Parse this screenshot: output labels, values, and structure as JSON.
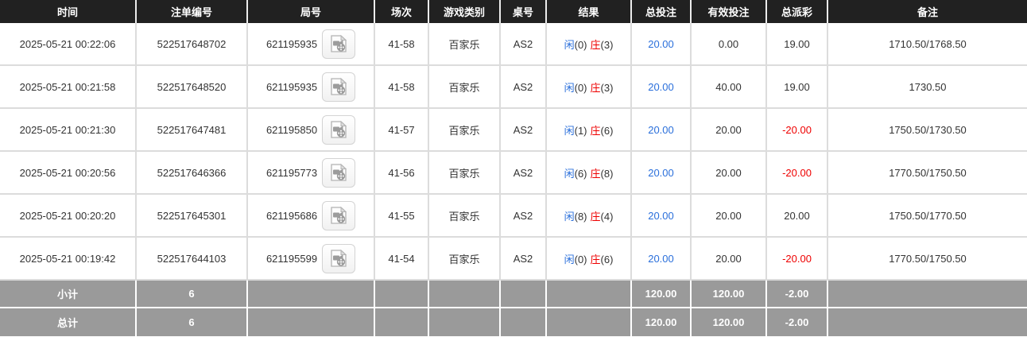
{
  "colors": {
    "header_bg": "#212121",
    "header_text": "#ffffff",
    "summary_bg": "#9a9a9a",
    "accent_blue": "#2a6fdb",
    "accent_red": "#ee0000",
    "row_border": "#dcdcdc"
  },
  "icons": {
    "round_action": "video-file-icon"
  },
  "table": {
    "columns": {
      "time": "时间",
      "bet_id": "注单编号",
      "round_id": "局号",
      "session": "场次",
      "game_type": "游戏类别",
      "table_no": "桌号",
      "result": "结果",
      "total_bet": "总投注",
      "valid_bet": "有效投注",
      "total_payout": "总派彩",
      "remark": "备注"
    },
    "rows": [
      {
        "time": "2025-05-21 00:22:06",
        "bet_id": "522517648702",
        "round_id": "621195935",
        "session": "41-58",
        "game": "百家乐",
        "table_no": "AS2",
        "result": {
          "player_label": "闲",
          "player_score": "(0)",
          "banker_label": "庄",
          "banker_score": "(3)"
        },
        "total_bet": "20.00",
        "valid_bet": "0.00",
        "payout": "19.00",
        "remark": "1710.50/1768.50"
      },
      {
        "time": "2025-05-21 00:21:58",
        "bet_id": "522517648520",
        "round_id": "621195935",
        "session": "41-58",
        "game": "百家乐",
        "table_no": "AS2",
        "result": {
          "player_label": "闲",
          "player_score": "(0)",
          "banker_label": "庄",
          "banker_score": "(3)"
        },
        "total_bet": "20.00",
        "valid_bet": "40.00",
        "payout": "19.00",
        "remark": "1730.50"
      },
      {
        "time": "2025-05-21 00:21:30",
        "bet_id": "522517647481",
        "round_id": "621195850",
        "session": "41-57",
        "game": "百家乐",
        "table_no": "AS2",
        "result": {
          "player_label": "闲",
          "player_score": "(1)",
          "banker_label": "庄",
          "banker_score": "(6)"
        },
        "total_bet": "20.00",
        "valid_bet": "20.00",
        "payout": "-20.00",
        "remark": "1750.50/1730.50"
      },
      {
        "time": "2025-05-21 00:20:56",
        "bet_id": "522517646366",
        "round_id": "621195773",
        "session": "41-56",
        "game": "百家乐",
        "table_no": "AS2",
        "result": {
          "player_label": "闲",
          "player_score": "(6)",
          "banker_label": "庄",
          "banker_score": "(8)"
        },
        "total_bet": "20.00",
        "valid_bet": "20.00",
        "payout": "-20.00",
        "remark": "1770.50/1750.50"
      },
      {
        "time": "2025-05-21 00:20:20",
        "bet_id": "522517645301",
        "round_id": "621195686",
        "session": "41-55",
        "game": "百家乐",
        "table_no": "AS2",
        "result": {
          "player_label": "闲",
          "player_score": "(8)",
          "banker_label": "庄",
          "banker_score": "(4)"
        },
        "total_bet": "20.00",
        "valid_bet": "20.00",
        "payout": "20.00",
        "remark": "1750.50/1770.50"
      },
      {
        "time": "2025-05-21 00:19:42",
        "bet_id": "522517644103",
        "round_id": "621195599",
        "session": "41-54",
        "game": "百家乐",
        "table_no": "AS2",
        "result": {
          "player_label": "闲",
          "player_score": "(0)",
          "banker_label": "庄",
          "banker_score": "(6)"
        },
        "total_bet": "20.00",
        "valid_bet": "20.00",
        "payout": "-20.00",
        "remark": "1770.50/1750.50"
      }
    ],
    "summary_rows": [
      {
        "label": "小计",
        "count": "6",
        "total_bet": "120.00",
        "valid_bet": "120.00",
        "payout": "-2.00"
      },
      {
        "label": "总计",
        "count": "6",
        "total_bet": "120.00",
        "valid_bet": "120.00",
        "payout": "-2.00"
      }
    ]
  }
}
